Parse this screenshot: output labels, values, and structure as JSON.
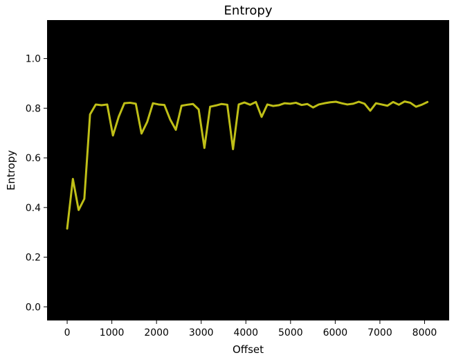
{
  "chart_data": {
    "type": "line",
    "title": "Entropy",
    "xlabel": "Offset",
    "ylabel": "Entropy",
    "xlim": [
      -450,
      8550
    ],
    "ylim": [
      -0.055,
      1.155
    ],
    "xticks": [
      0,
      1000,
      2000,
      3000,
      4000,
      5000,
      6000,
      7000,
      8000
    ],
    "xtick_labels": [
      "0",
      "1000",
      "2000",
      "3000",
      "4000",
      "5000",
      "6000",
      "7000",
      "8000"
    ],
    "yticks": [
      0.0,
      0.2,
      0.4,
      0.6,
      0.8,
      1.0
    ],
    "ytick_labels": [
      "0.0",
      "0.2",
      "0.4",
      "0.6",
      "0.8",
      "1.0"
    ],
    "grid": false,
    "background_color": "#000000",
    "series": [
      {
        "color": "#bfbf17",
        "x": [
          0,
          128,
          256,
          384,
          512,
          640,
          768,
          896,
          1024,
          1152,
          1280,
          1408,
          1536,
          1664,
          1792,
          1920,
          2048,
          2176,
          2304,
          2432,
          2560,
          2688,
          2816,
          2944,
          3072,
          3200,
          3328,
          3456,
          3584,
          3712,
          3840,
          3968,
          4096,
          4224,
          4352,
          4480,
          4608,
          4736,
          4864,
          4992,
          5120,
          5248,
          5376,
          5504,
          5632,
          5760,
          5888,
          6016,
          6144,
          6272,
          6400,
          6528,
          6656,
          6784,
          6912,
          7040,
          7168,
          7296,
          7424,
          7552,
          7680,
          7808,
          7936,
          8064
        ],
        "y": [
          0.315,
          0.515,
          0.39,
          0.435,
          0.775,
          0.815,
          0.812,
          0.815,
          0.69,
          0.765,
          0.82,
          0.822,
          0.818,
          0.698,
          0.745,
          0.82,
          0.815,
          0.813,
          0.755,
          0.713,
          0.81,
          0.814,
          0.817,
          0.795,
          0.64,
          0.806,
          0.811,
          0.817,
          0.814,
          0.635,
          0.815,
          0.823,
          0.814,
          0.825,
          0.765,
          0.815,
          0.809,
          0.812,
          0.82,
          0.818,
          0.822,
          0.813,
          0.817,
          0.803,
          0.815,
          0.82,
          0.824,
          0.826,
          0.82,
          0.815,
          0.818,
          0.826,
          0.818,
          0.79,
          0.82,
          0.815,
          0.81,
          0.825,
          0.814,
          0.827,
          0.822,
          0.806,
          0.814,
          0.825
        ]
      }
    ]
  }
}
